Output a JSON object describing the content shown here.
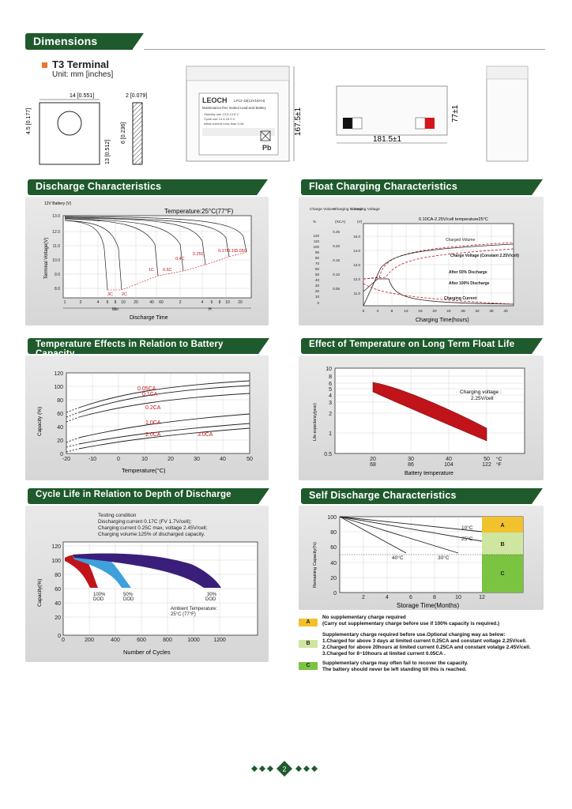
{
  "sections": {
    "dimensions": "Dimensions",
    "discharge": "Discharge Characteristics",
    "float": "Float Charging Characteristics",
    "temp_capacity": "Temperature Effects in Relation to Battery Capacity",
    "temp_life": "Effect of Temperature on Long Term Float Life",
    "cycle_life": "Cycle Life in Relation to Depth of Discharge",
    "self_discharge": "Self Discharge Characteristics"
  },
  "terminal": {
    "title": "T3 Terminal",
    "unit": "Unit: mm [inches]",
    "dim_width": "14 [0.551]",
    "dim_thickness": "2 [0.079]",
    "dim_left": "4.5 [0.177]",
    "dim_height": "13 [0.512]",
    "dim_hole": "6 [0.236]"
  },
  "battery": {
    "brand": "LEOCH",
    "model": "LP12-18(12V18AH)",
    "subtitle": "Maintenance-free Sealed Lead-acid Battery",
    "line1": "Standby use    13.5-13.8    V",
    "line2": "Cycle use      14.4-15.0    V",
    "line3": "Initial current  Less than  5.4A",
    "pb": "Pb",
    "height": "167.5±1",
    "length": "181.5±1",
    "width": "77±1"
  },
  "discharge_chart": {
    "temp_note": "Temperature:25°C(77°F)",
    "y_title": "Terminal Voltage(V)",
    "y_unit": "12V Battery (V)",
    "yticks": [
      "13.0",
      "12.0",
      "11.0",
      "10.0",
      "9.0",
      "8.0"
    ],
    "xticks": [
      "1",
      "2",
      "4",
      "6",
      "8",
      "10",
      "20",
      "40",
      "60",
      "2",
      "4",
      "6",
      "8",
      "10",
      "20"
    ],
    "min_label": "Min",
    "h_label": "H",
    "x_title": "Discharge Time",
    "rate_labels": [
      "3C",
      "2C",
      "1C",
      "0.6C",
      "0.4C",
      "0.25C",
      "0.17C",
      "0.1C",
      "0.05C"
    ]
  },
  "float_chart": {
    "header1": "Charge Volume",
    "header2": "Charging Current",
    "header3": "Charging Voltage",
    "unit1": "%",
    "unit2": "(XCA)",
    "unit3": "(V)",
    "note": "0.10CA-2.25V/cell   temperature25°C",
    "cv_label": "Charged Volume",
    "volt_label": "Charge Voltage (Constant 2.25V/cell)",
    "after50": "After 50% Discharge",
    "after100": "After 100% Discharge",
    "current_label": "Charging Current",
    "x_title": "Charging Time(hours)",
    "xticks": [
      "0",
      "4",
      "8",
      "12",
      "16",
      "20",
      "24",
      "28",
      "32",
      "36",
      "40"
    ],
    "pct_ticks": [
      "120",
      "110",
      "100",
      "90",
      "80",
      "70",
      "60",
      "50",
      "40",
      "30",
      "20",
      "10",
      "0"
    ],
    "ca_ticks": [
      "0.25",
      "0.20",
      "0.15",
      "0.10",
      "0.05"
    ],
    "v_ticks": [
      "15.0",
      "14.0",
      "13.0",
      "12.0",
      "11.0"
    ]
  },
  "temp_capacity_chart": {
    "y_title": "Capacity (%)",
    "x_title": "Temperature(°C)",
    "yticks": [
      "120",
      "100",
      "80",
      "60",
      "40",
      "20",
      "0"
    ],
    "xticks": [
      "-20",
      "-10",
      "0",
      "10",
      "20",
      "30",
      "40",
      "50"
    ],
    "labels": [
      "0.05CA",
      "0.1CA",
      "0.2CA",
      "1.0CA",
      "2.0CA",
      "3.0CA"
    ]
  },
  "temp_life_chart": {
    "y_title": "Life expectancy(year)",
    "yticks": [
      "10",
      "8",
      "6",
      "5",
      "4",
      "3",
      "2",
      "1",
      "0.5"
    ],
    "xticks_c": [
      "20",
      "30",
      "40",
      "50"
    ],
    "xticks_f": [
      "68",
      "86",
      "104",
      "122"
    ],
    "unit_c": "°C",
    "unit_f": "°F",
    "note1": "Charging voltage :",
    "note2": "2.25V/cell",
    "x_title": "Battery temperature"
  },
  "cycle_chart": {
    "cond1": "Testing condition",
    "cond2": "Discharging:current 0.17C (FV 1.7V/cell);",
    "cond3": "Charging:current 0.25C max, voltage 2.45V/cell;",
    "cond4": "Charging volume:125% of discharged capacity.",
    "y_title": "Capacity(%)",
    "x_title": "Number of Cycles",
    "yticks": [
      "120",
      "100",
      "80",
      "60",
      "40",
      "20",
      "0"
    ],
    "xticks": [
      "0",
      "200",
      "400",
      "600",
      "800",
      "1000",
      "1200"
    ],
    "dod100a": "100%",
    "dod100b": "DOD",
    "dod50a": "50%",
    "dod50b": "DOD",
    "dod30a": "30%",
    "dod30b": "DOD",
    "ambient1": "Ambient Temperature:",
    "ambient2": "25°C (77°F)"
  },
  "self_chart": {
    "y_title": "Remaining Capacity(%)",
    "x_title": "Storage Time(Months)",
    "yticks": [
      "100",
      "80",
      "60",
      "40",
      "20",
      "0"
    ],
    "xticks": [
      "2",
      "4",
      "6",
      "8",
      "10",
      "12"
    ],
    "t10": "10°C",
    "t25": "25°C",
    "t30": "30°C",
    "t40": "40°C",
    "zones": [
      "A",
      "B",
      "C"
    ]
  },
  "legend": {
    "a_box": "A",
    "a1": "No supplementary charge required",
    "a2": "(Carry out supplementary charge before use if 100% capacity is required.)",
    "b_box": "B",
    "b1": "Supplementary charge required before use.Optional charging way as below:",
    "b2": "1.Charged for above 3 days at limited current 0.25CA and constant voltage 2.25V/cell.",
    "b3": "2.Charged for above 20hours at limited current 0.25CA and constant volatge 2.45V/cell.",
    "b4": "3.Charged for 8~10hours at limited current 0.05CA .",
    "c_box": "C",
    "c1": "Supplementary charge may often fail to recover the capacity.",
    "c2": "The battery should never be  left standing till this is reached."
  },
  "page_number": "2",
  "colors": {
    "green": "#1f5a2d",
    "red": "#c0141a",
    "blue": "#3fa0dc",
    "purple": "#3a1f7a"
  }
}
